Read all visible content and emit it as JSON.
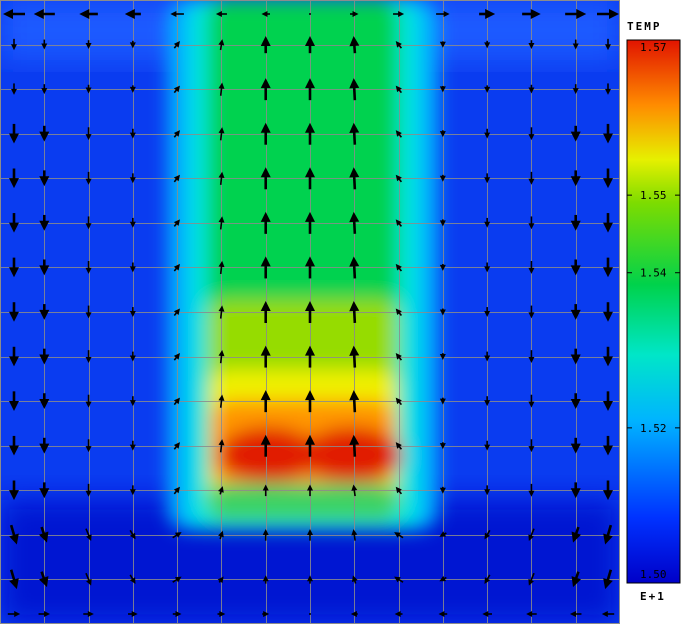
{
  "chart_data": {
    "type": "heatmap",
    "title": "",
    "variable": "TEMP",
    "exponent_label": "E+1",
    "colorbar": {
      "min": 1.5,
      "max": 1.57,
      "tick_labels": [
        "1.57",
        "1.55",
        "1.54",
        "1.52",
        "1.50"
      ],
      "tick_values": [
        1.57,
        1.55,
        1.54,
        1.52,
        1.5
      ]
    },
    "grid": {
      "columns": 14,
      "rows": 14,
      "gridlines": true
    },
    "field": {
      "background_value": 1.505,
      "plume_columns": [
        5,
        9
      ],
      "plume_top_value": 1.535,
      "plume_bottom_value": 1.555,
      "hot_spots": [
        {
          "col": 6.1,
          "row": 10.4,
          "value": 1.57
        },
        {
          "col": 8.1,
          "row": 10.4,
          "value": 1.57
        }
      ]
    },
    "vector_field": {
      "description_rows": 14,
      "columns": 14,
      "upflow_columns": [
        5,
        6,
        7,
        8
      ],
      "downflow_columns": [
        0,
        13
      ],
      "max_magnitude": 1.0
    },
    "colors": {
      "low": "#0000c8",
      "mid_low": "#00c8ff",
      "mid": "#00d24b",
      "mid_high": "#e6f000",
      "high": "#e11400"
    }
  }
}
